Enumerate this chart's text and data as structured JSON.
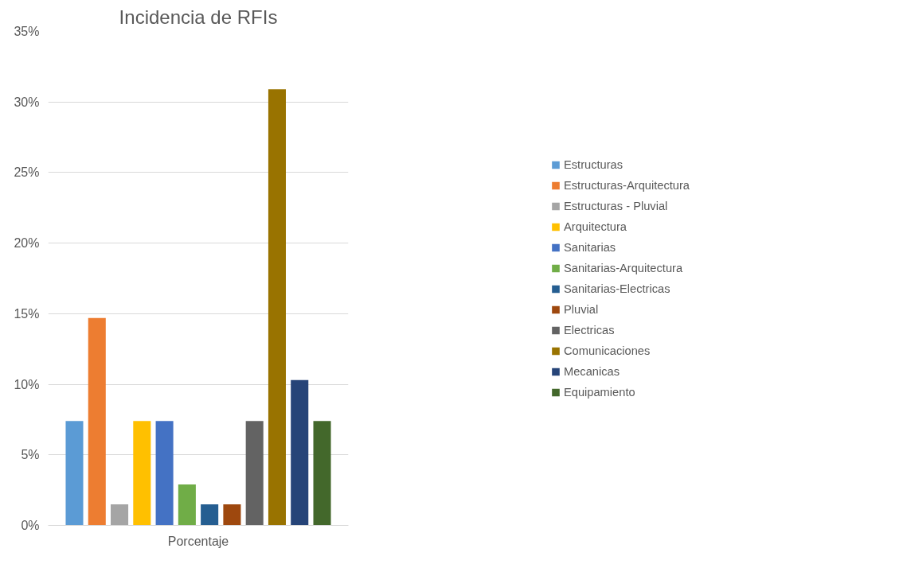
{
  "chart_data": {
    "type": "bar",
    "title": "Incidencia de RFIs",
    "categories": [
      "Porcentaje"
    ],
    "series": [
      {
        "name": "Estructuras",
        "color": "#5b9bd5",
        "values": [
          7.4
        ]
      },
      {
        "name": "Estructuras-Arquitectura",
        "color": "#ed7d31",
        "values": [
          14.7
        ]
      },
      {
        "name": "Estructuras - Pluvial",
        "color": "#a5a5a5",
        "values": [
          1.5
        ]
      },
      {
        "name": "Arquitectura",
        "color": "#ffc000",
        "values": [
          7.4
        ]
      },
      {
        "name": "Sanitarias",
        "color": "#4472c4",
        "values": [
          7.4
        ]
      },
      {
        "name": "Sanitarias-Arquitectura",
        "color": "#70ad47",
        "values": [
          2.9
        ]
      },
      {
        "name": "Sanitarias-Electricas",
        "color": "#255e91",
        "values": [
          1.5
        ]
      },
      {
        "name": "Pluvial",
        "color": "#9e480e",
        "values": [
          1.5
        ]
      },
      {
        "name": "Electricas",
        "color": "#636363",
        "values": [
          7.4
        ]
      },
      {
        "name": "Comunicaciones",
        "color": "#997300",
        "values": [
          30.9
        ]
      },
      {
        "name": "Mecanicas",
        "color": "#264478",
        "values": [
          10.3
        ]
      },
      {
        "name": "Equipamiento",
        "color": "#43682b",
        "values": [
          7.4
        ]
      }
    ],
    "ylim": [
      0,
      35
    ],
    "yticks": [
      {
        "value": 0,
        "label": "0%"
      },
      {
        "value": 5,
        "label": "5%"
      },
      {
        "value": 10,
        "label": "10%"
      },
      {
        "value": 15,
        "label": "15%"
      },
      {
        "value": 20,
        "label": "20%"
      },
      {
        "value": 25,
        "label": "25%"
      },
      {
        "value": 30,
        "label": "30%"
      },
      {
        "value": 35,
        "label": "35%"
      }
    ],
    "grid": "y",
    "legend": "right"
  }
}
